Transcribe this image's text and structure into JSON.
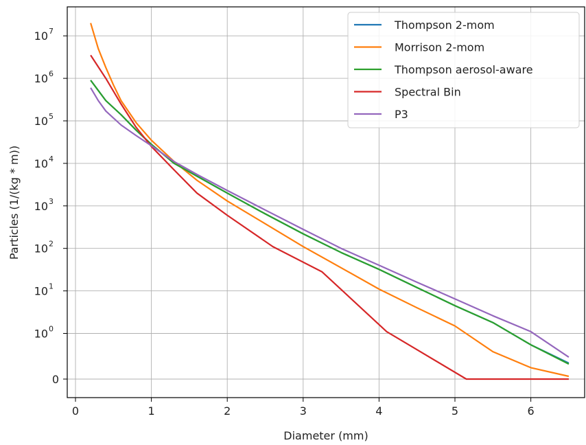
{
  "chart_data": {
    "type": "line",
    "xlabel": "Diameter (mm)",
    "ylabel": "Particles (1/(kg * m))",
    "xlim": [
      -0.1,
      6.7
    ],
    "x_ticks": [
      0,
      1,
      2,
      3,
      4,
      5,
      6
    ],
    "y_scale": "symlog",
    "y_ticks": [
      {
        "value": 0,
        "label": "0"
      },
      {
        "value": 1,
        "label": "10",
        "exp": "0"
      },
      {
        "value": 10,
        "label": "10",
        "exp": "1"
      },
      {
        "value": 100,
        "label": "10",
        "exp": "2"
      },
      {
        "value": 1000,
        "label": "10",
        "exp": "3"
      },
      {
        "value": 10000,
        "label": "10",
        "exp": "4"
      },
      {
        "value": 100000,
        "label": "10",
        "exp": "5"
      },
      {
        "value": 1000000,
        "label": "10",
        "exp": "6"
      },
      {
        "value": 10000000,
        "label": "10",
        "exp": "7"
      }
    ],
    "grid": true,
    "legend_position": "top-right",
    "series": [
      {
        "name": "Thompson 2-mom",
        "color": "#1f77b4",
        "x": [
          0.2,
          0.4,
          0.6,
          0.8,
          1.0,
          1.3,
          1.6,
          2.0,
          2.5,
          3.0,
          3.5,
          4.0,
          4.5,
          5.0,
          5.5,
          6.0,
          6.5
        ],
        "y": [
          900000,
          300000,
          140000,
          60000,
          28000,
          10000,
          5000,
          2000,
          650,
          220,
          80,
          32,
          12,
          4.5,
          1.8,
          0.75,
          0.35
        ]
      },
      {
        "name": "Morrison 2-mom",
        "color": "#ff7f0e",
        "x": [
          0.2,
          0.3,
          0.4,
          0.5,
          0.6,
          0.8,
          1.0,
          1.3,
          1.6,
          2.0,
          2.5,
          3.0,
          3.5,
          4.0,
          4.5,
          5.0,
          5.5,
          6.0,
          6.5
        ],
        "y": [
          20000000,
          5000000,
          1800000,
          700000,
          300000,
          90000,
          35000,
          11000,
          4000,
          1300,
          380,
          110,
          35,
          11,
          4,
          1.5,
          0.6,
          0.25,
          0.06
        ]
      },
      {
        "name": "Thompson aerosol-aware",
        "color": "#2ca02c",
        "x": [
          0.2,
          0.4,
          0.6,
          0.8,
          1.0,
          1.3,
          1.6,
          2.0,
          2.5,
          3.0,
          3.5,
          4.0,
          4.5,
          5.0,
          5.5,
          6.0,
          6.5
        ],
        "y": [
          900000,
          300000,
          140000,
          60000,
          28000,
          10000,
          5000,
          2000,
          650,
          220,
          80,
          32,
          12,
          4.5,
          1.8,
          0.75,
          0.33
        ]
      },
      {
        "name": "Spectral Bin",
        "color": "#d62728",
        "x": [
          0.2,
          0.4,
          0.6,
          0.8,
          1.0,
          1.3,
          1.6,
          2.0,
          2.6,
          3.25,
          4.1,
          5.15,
          6.5
        ],
        "y": [
          3500000,
          1000000,
          250000,
          70000,
          25000,
          7000,
          2000,
          600,
          110,
          28,
          1.1,
          0,
          0
        ]
      },
      {
        "name": "P3",
        "color": "#9467bd",
        "x": [
          0.2,
          0.3,
          0.4,
          0.6,
          0.8,
          1.0,
          1.3,
          1.6,
          2.0,
          2.5,
          3.0,
          3.5,
          4.0,
          4.5,
          5.0,
          5.5,
          6.0,
          6.5
        ],
        "y": [
          600000,
          300000,
          170000,
          80000,
          45000,
          26000,
          11000,
          5500,
          2300,
          800,
          280,
          100,
          40,
          16,
          6.5,
          2.6,
          1.1,
          0.48
        ]
      }
    ]
  }
}
